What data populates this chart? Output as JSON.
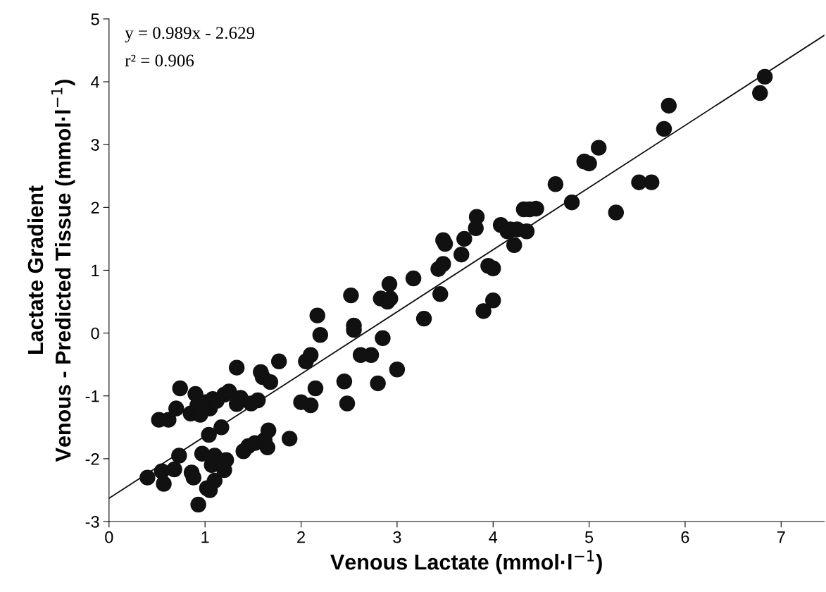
{
  "chart_data": {
    "type": "scatter",
    "xlabel": "Venous Lactate (mmol·l$^{−1}$)",
    "ylabel": "Lactate Gradient\nVenous - Predicted Tissue (mmol·l$^{−1}$)",
    "annotations": [
      "y = 0.989x - 2.629",
      "r² = 0.906"
    ],
    "xlim": [
      0,
      7.45
    ],
    "ylim": [
      -3,
      5
    ],
    "xticks": [
      0,
      1,
      2,
      3,
      4,
      5,
      6,
      7
    ],
    "yticks": [
      -3,
      -2,
      -1,
      0,
      1,
      2,
      3,
      4,
      5
    ],
    "grid": false,
    "legend": false,
    "marker": "circle",
    "series": [
      {
        "color": "#111111",
        "x": [
          0.4,
          0.52,
          0.55,
          0.57,
          0.62,
          0.68,
          0.7,
          0.73,
          0.74,
          0.85,
          0.86,
          0.88,
          0.9,
          0.92,
          0.93,
          0.95,
          0.97,
          1.0,
          1.02,
          1.04,
          1.05,
          1.05,
          1.07,
          1.08,
          1.1,
          1.1,
          1.12,
          1.17,
          1.2,
          1.2,
          1.22,
          1.25,
          1.33,
          1.33,
          1.37,
          1.4,
          1.45,
          1.48,
          1.52,
          1.55,
          1.58,
          1.6,
          1.62,
          1.65,
          1.66,
          1.68,
          1.77,
          1.88,
          2.0,
          2.05,
          2.1,
          2.1,
          2.15,
          2.17,
          2.2,
          2.45,
          2.48,
          2.52,
          2.55,
          2.55,
          2.62,
          2.73,
          2.8,
          2.83,
          2.85,
          2.9,
          2.92,
          2.93,
          3.0,
          3.17,
          3.28,
          3.43,
          3.45,
          3.48,
          3.48,
          3.5,
          3.67,
          3.7,
          3.82,
          3.83,
          3.9,
          3.95,
          4.0,
          4.0,
          4.08,
          4.15,
          4.18,
          4.22,
          4.25,
          4.32,
          4.35,
          4.38,
          4.45,
          4.65,
          4.82,
          4.95,
          5.0,
          5.1,
          5.28,
          5.52,
          5.65,
          5.78,
          5.83,
          6.78,
          6.83
        ],
        "values": [
          -2.3,
          -1.38,
          -2.2,
          -2.4,
          -1.38,
          -2.17,
          -1.2,
          -1.95,
          -0.88,
          -1.28,
          -2.22,
          -2.3,
          -0.97,
          -1.15,
          -2.73,
          -1.3,
          -1.92,
          -1.1,
          -2.47,
          -1.62,
          -1.2,
          -2.5,
          -2.1,
          -1.05,
          -2.35,
          -1.95,
          -1.08,
          -1.5,
          -0.98,
          -2.18,
          -2.02,
          -0.93,
          -1.13,
          -0.55,
          -1.03,
          -1.88,
          -1.8,
          -1.12,
          -1.75,
          -1.07,
          -0.62,
          -0.7,
          -1.7,
          -1.82,
          -1.55,
          -0.78,
          -0.45,
          -1.68,
          -1.1,
          -0.45,
          -0.35,
          -1.15,
          -0.88,
          0.28,
          -0.03,
          -0.77,
          -1.12,
          0.6,
          0.12,
          0.05,
          -0.35,
          -0.35,
          -0.8,
          0.55,
          -0.08,
          0.5,
          0.78,
          0.55,
          -0.58,
          0.87,
          0.23,
          1.02,
          0.62,
          1.1,
          1.48,
          1.42,
          1.25,
          1.5,
          1.67,
          1.85,
          0.35,
          1.07,
          1.03,
          0.52,
          1.72,
          1.62,
          1.65,
          1.4,
          1.65,
          1.97,
          1.62,
          1.97,
          1.98,
          2.37,
          2.08,
          2.73,
          2.7,
          2.95,
          1.92,
          2.4,
          2.4,
          3.25,
          3.62,
          3.82,
          4.08
        ]
      },
      {
        "type": "line",
        "color": "#111111",
        "x": [
          0,
          7.45
        ],
        "values": [
          -2.63,
          4.74
        ],
        "marker": "none",
        "line_style": "solid"
      }
    ]
  }
}
